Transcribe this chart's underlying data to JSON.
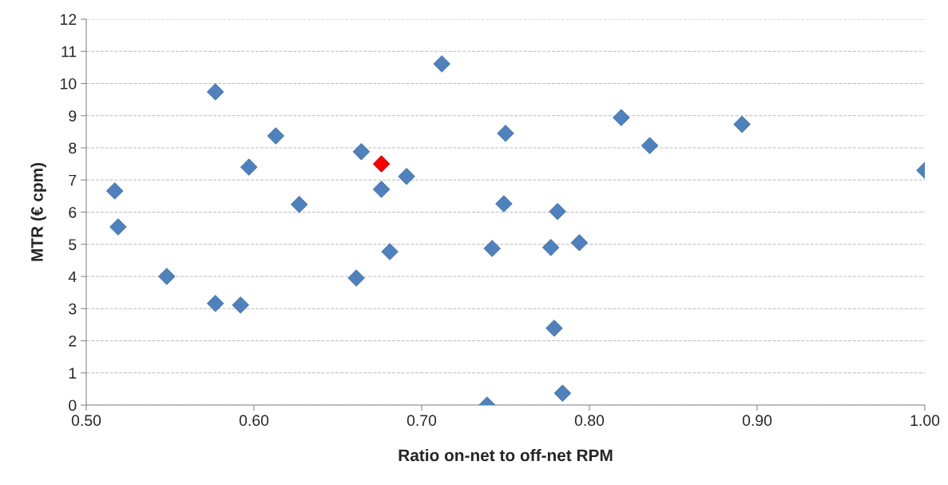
{
  "chart_data": {
    "type": "scatter",
    "xlabel": "Ratio on-net to off-net RPM",
    "ylabel": "MTR (€ cpm)",
    "series": [
      {
        "color": "#4f81bd",
        "x": [
          0.517,
          0.519,
          0.548,
          0.577,
          0.577,
          0.592,
          0.597,
          0.613,
          0.627,
          0.661,
          0.664,
          0.676,
          0.691,
          0.681,
          0.712,
          0.75,
          0.749,
          0.742,
          0.739,
          0.777,
          0.794,
          0.781,
          0.779,
          0.784,
          0.819,
          0.836,
          0.891,
          1.0
        ],
        "values": [
          6.66,
          5.54,
          4.0,
          9.74,
          3.16,
          3.11,
          7.4,
          8.37,
          6.24,
          3.95,
          7.88,
          6.71,
          7.11,
          4.77,
          10.61,
          8.45,
          6.26,
          4.87,
          0.0,
          4.9,
          5.05,
          6.02,
          2.39,
          0.37,
          8.94,
          8.07,
          8.73,
          7.3
        ]
      },
      {
        "color": "#ff0000",
        "x": [
          0.676
        ],
        "values": [
          7.5
        ]
      }
    ],
    "xlim": [
      0.5,
      1.0
    ],
    "xticks": [
      {
        "value": 0.5,
        "label": "0.50"
      },
      {
        "value": 0.6,
        "label": "0.60"
      },
      {
        "value": 0.7,
        "label": "0.70"
      },
      {
        "value": 0.8,
        "label": "0.80"
      },
      {
        "value": 0.9,
        "label": "0.90"
      },
      {
        "value": 1.0,
        "label": "1.00"
      }
    ],
    "ylim": [
      0,
      12
    ],
    "yticks": [
      0,
      1,
      2,
      3,
      4,
      5,
      6,
      7,
      8,
      9,
      10,
      11,
      12
    ],
    "grid": "y",
    "marker": "diamond"
  }
}
